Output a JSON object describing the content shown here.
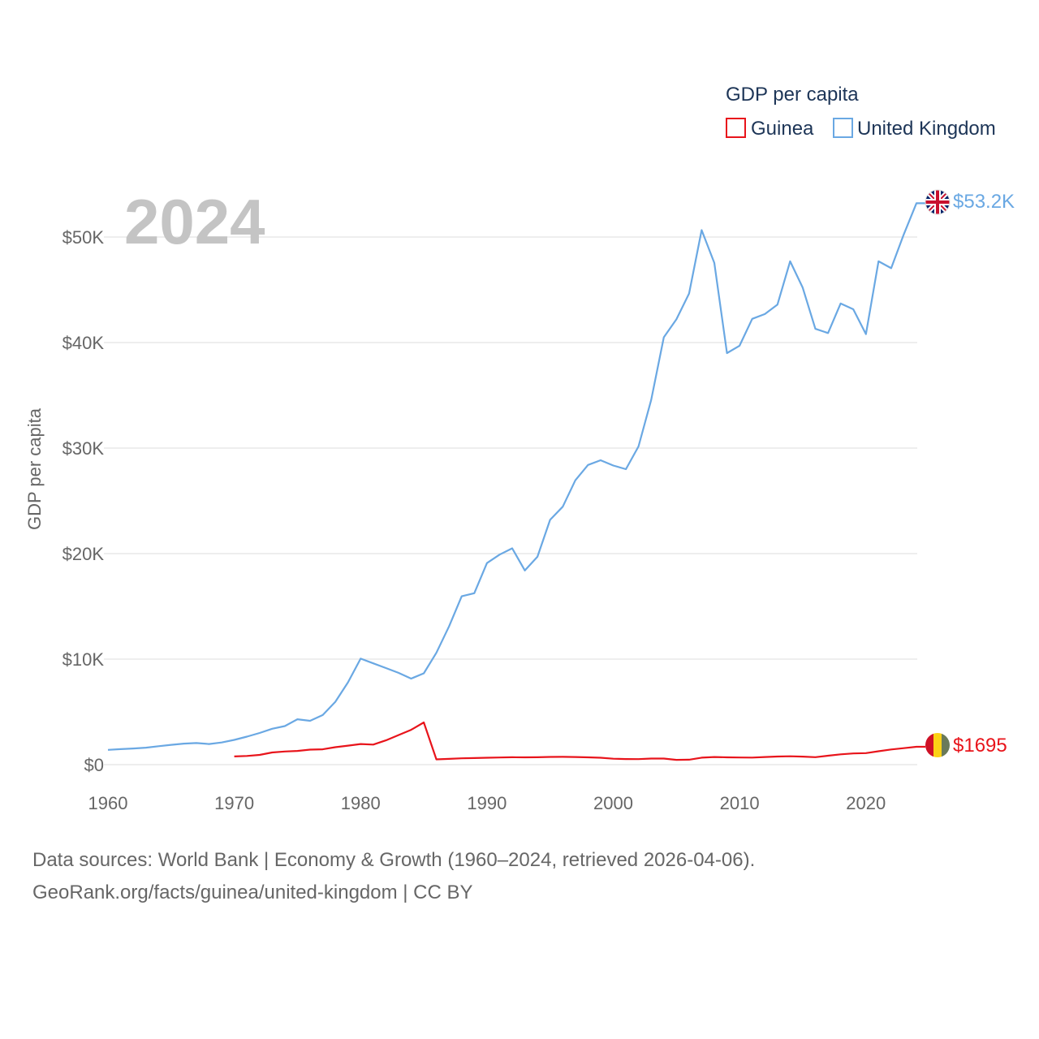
{
  "chart_data": {
    "type": "line",
    "year_label": "2024",
    "ylabel": "GDP per capita",
    "legend_title": "GDP per capita",
    "xlim": [
      1960,
      2024
    ],
    "ylim": [
      0,
      55000
    ],
    "x_ticks": [
      1960,
      1970,
      1980,
      1990,
      2000,
      2010,
      2020
    ],
    "x_tick_labels": [
      "1960",
      "1970",
      "1980",
      "1990",
      "2000",
      "2010",
      "2020"
    ],
    "y_ticks": [
      0,
      10000,
      20000,
      30000,
      40000,
      50000
    ],
    "y_tick_labels": [
      "$0",
      "$10K",
      "$20K",
      "$30K",
      "$40K",
      "$50K"
    ],
    "series": [
      {
        "name": "Guinea",
        "color": "#e8141b",
        "end_label": "$1695",
        "flag_icon": "guinea-flag-icon",
        "x": [
          1970,
          1971,
          1972,
          1973,
          1974,
          1975,
          1976,
          1977,
          1978,
          1979,
          1980,
          1981,
          1982,
          1983,
          1984,
          1985,
          1986,
          1987,
          1988,
          1989,
          1990,
          1991,
          1992,
          1993,
          1994,
          1995,
          1996,
          1997,
          1998,
          1999,
          2000,
          2001,
          2002,
          2003,
          2004,
          2005,
          2006,
          2007,
          2008,
          2009,
          2010,
          2011,
          2012,
          2013,
          2014,
          2015,
          2016,
          2017,
          2018,
          2019,
          2020,
          2021,
          2022,
          2023,
          2024
        ],
        "values": [
          780,
          820,
          920,
          1150,
          1250,
          1300,
          1420,
          1450,
          1650,
          1800,
          1950,
          1900,
          2300,
          2800,
          3300,
          4000,
          500,
          550,
          600,
          620,
          650,
          680,
          700,
          690,
          700,
          730,
          740,
          720,
          690,
          650,
          560,
          530,
          520,
          580,
          580,
          450,
          470,
          660,
          720,
          690,
          680,
          670,
          720,
          770,
          790,
          760,
          710,
          850,
          980,
          1060,
          1090,
          1270,
          1440,
          1560,
          1695
        ]
      },
      {
        "name": "United Kingdom",
        "color": "#6aa8e3",
        "end_label": "$53.2K",
        "flag_icon": "united-kingdom-flag-icon",
        "x": [
          1960,
          1961,
          1962,
          1963,
          1964,
          1965,
          1966,
          1967,
          1968,
          1969,
          1970,
          1971,
          1972,
          1973,
          1974,
          1975,
          1976,
          1977,
          1978,
          1979,
          1980,
          1981,
          1982,
          1983,
          1984,
          1985,
          1986,
          1987,
          1988,
          1989,
          1990,
          1991,
          1992,
          1993,
          1994,
          1995,
          1996,
          1997,
          1998,
          1999,
          2000,
          2001,
          2002,
          2003,
          2004,
          2005,
          2006,
          2007,
          2008,
          2009,
          2010,
          2011,
          2012,
          2013,
          2014,
          2015,
          2016,
          2017,
          2018,
          2019,
          2020,
          2021,
          2022,
          2023,
          2024
        ],
        "values": [
          1400,
          1470,
          1530,
          1610,
          1750,
          1880,
          1990,
          2050,
          1950,
          2100,
          2350,
          2650,
          3000,
          3400,
          3650,
          4300,
          4150,
          4700,
          5950,
          7800,
          10050,
          9600,
          9150,
          8700,
          8150,
          8650,
          10600,
          13100,
          15950,
          16250,
          19100,
          19900,
          20500,
          18400,
          19700,
          23200,
          24450,
          26950,
          28400,
          28850,
          28350,
          28000,
          30150,
          34550,
          40500,
          42200,
          44650,
          50650,
          47550,
          39000,
          39700,
          42250,
          42700,
          43600,
          47700,
          45200,
          41300,
          40900,
          43700,
          43150,
          40800,
          47700,
          47050,
          50250,
          53200
        ]
      }
    ]
  },
  "source": {
    "line1": "Data sources: World Bank | Economy & Growth (1960–2024, retrieved 2026-04-06).",
    "line2": "GeoRank.org/facts/guinea/united-kingdom | CC BY"
  }
}
